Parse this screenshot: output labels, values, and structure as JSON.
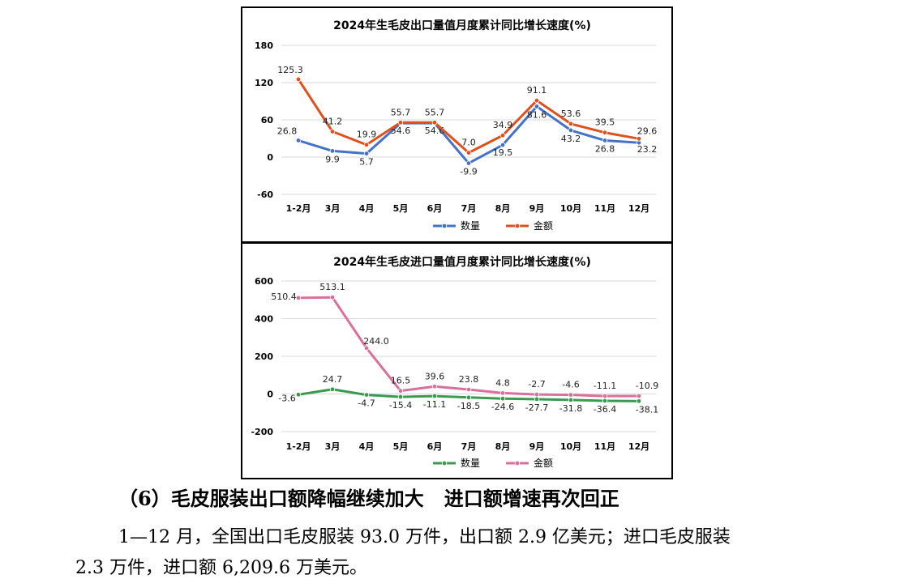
{
  "colors": {
    "export_qty": "#4472C4",
    "export_amt": "#E0501E",
    "import_qty": "#3C9A50",
    "import_amt": "#D9709A",
    "grid": "#d9d9d9"
  },
  "chart_data": [
    {
      "type": "line",
      "title": "2024年生毛皮出口量值月度累计同比增长速度(%)",
      "categories": [
        "1-2月",
        "3月",
        "4月",
        "5月",
        "6月",
        "7月",
        "8月",
        "9月",
        "10月",
        "11月",
        "12月"
      ],
      "ylim": [
        -60,
        180
      ],
      "yticks": [
        -60,
        0,
        60,
        120,
        180
      ],
      "ytick_labels": [
        "-60",
        "0",
        "60",
        "120",
        "180"
      ],
      "grid": true,
      "legend": "bottom",
      "series": [
        {
          "name": "数量",
          "color_key": "export_qty",
          "values": [
            26.8,
            9.9,
            5.7,
            54.6,
            54.6,
            -9.9,
            19.5,
            81.6,
            43.2,
            26.8,
            23.2
          ],
          "labels": [
            "26.8",
            "9.9",
            "5.7",
            "54.6",
            "54.6",
            "-9.9",
            "19.5",
            "81.6",
            "43.2",
            "26.8",
            "23.2"
          ]
        },
        {
          "name": "金额",
          "color_key": "export_amt",
          "values": [
            125.3,
            41.2,
            19.9,
            55.7,
            55.7,
            7.0,
            34.9,
            91.1,
            53.6,
            39.5,
            29.6
          ],
          "labels": [
            "125.3",
            "41.2",
            "19.9",
            "55.7",
            "55.7",
            "7.0",
            "34.9",
            "91.1",
            "53.6",
            "39.5",
            "29.6"
          ]
        }
      ]
    },
    {
      "type": "line",
      "title": "2024年生毛皮进口量值月度累计同比增长速度(%)",
      "categories": [
        "1-2月",
        "3月",
        "4月",
        "5月",
        "6月",
        "7月",
        "8月",
        "9月",
        "10月",
        "11月",
        "12月"
      ],
      "ylim": [
        -200,
        600
      ],
      "yticks": [
        -200,
        0,
        200,
        400,
        600
      ],
      "ytick_labels": [
        "-200",
        "0",
        "200",
        "400",
        "600"
      ],
      "grid": true,
      "legend": "bottom",
      "series": [
        {
          "name": "数量",
          "color_key": "import_qty",
          "values": [
            -3.6,
            24.7,
            -4.7,
            -15.4,
            -11.1,
            -18.5,
            -24.6,
            -27.7,
            -31.8,
            -36.4,
            -38.1
          ],
          "labels": [
            "-3.6",
            "24.7",
            "-4.7",
            "-15.4",
            "-11.1",
            "-18.5",
            "-24.6",
            "-27.7",
            "-31.8",
            "-36.4",
            "-38.1"
          ]
        },
        {
          "name": "金额",
          "color_key": "import_amt",
          "values": [
            510.4,
            513.1,
            244.0,
            16.5,
            39.6,
            23.8,
            4.8,
            -2.7,
            -4.6,
            -11.1,
            -10.9
          ],
          "labels": [
            "510.4",
            "513.1",
            "244.0",
            "16.5",
            "39.6",
            "23.8",
            "4.8",
            "-2.7",
            "-4.6",
            "-11.1",
            "-10.9"
          ]
        }
      ]
    }
  ],
  "text": {
    "heading": "（6）毛皮服装出口额降幅继续加大   进口额增速再次回正",
    "para_line1": "1—12 月，全国出口毛皮服装 93.0 万件，出口额 2.9 亿美元；进口毛皮服装",
    "para_line2": "2.3 万件，进口额 6,209.6 万美元。"
  }
}
